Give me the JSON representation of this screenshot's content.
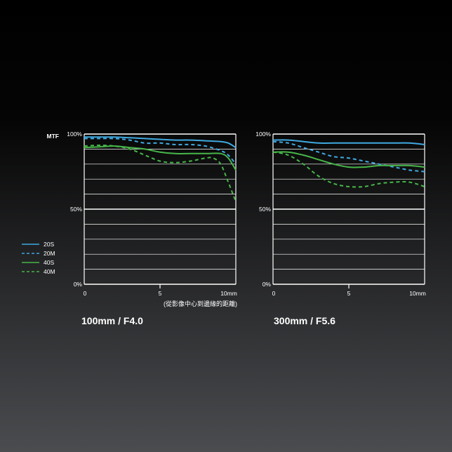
{
  "colors": {
    "sagittal": "#3fa9e0",
    "meridional": "#47b649",
    "grid": "#ffffff"
  },
  "labels": {
    "mtf": "MTF",
    "distance_note": "(從影像中心到邊緣的距離)"
  },
  "chart_data": [
    {
      "type": "line",
      "title": "100mm / F4.0",
      "ylabel": "MTF",
      "xlabel": "(從影像中心到邊緣的距離)",
      "xlim": [
        0,
        10
      ],
      "ylim": [
        0,
        100
      ],
      "xticks": [
        "0",
        "5",
        "10mm"
      ],
      "yticks": [
        "0%",
        "50%",
        "100%"
      ],
      "series": [
        {
          "name": "20S",
          "style": "solid",
          "color": "#3fa9e0",
          "x": [
            0,
            1,
            2,
            3,
            4,
            5,
            6,
            7,
            8,
            9,
            9.5,
            10
          ],
          "y": [
            98,
            98,
            98,
            97.5,
            97,
            96.5,
            96,
            96,
            95.5,
            95,
            94,
            91
          ]
        },
        {
          "name": "20M",
          "style": "dashed",
          "color": "#3fa9e0",
          "x": [
            0,
            1,
            2,
            3,
            4,
            5,
            6,
            7,
            8,
            9,
            9.5,
            10
          ],
          "y": [
            97,
            97,
            97,
            96,
            94,
            94,
            93,
            93,
            92,
            89,
            86,
            80
          ]
        },
        {
          "name": "40S",
          "style": "solid",
          "color": "#47b649",
          "x": [
            0,
            1,
            2,
            3,
            4,
            5,
            6,
            7,
            8,
            9,
            9.5,
            10
          ],
          "y": [
            91,
            91.5,
            92,
            91,
            90,
            88,
            87,
            87,
            87,
            87,
            84,
            76
          ]
        },
        {
          "name": "40M",
          "style": "dashed",
          "color": "#47b649",
          "x": [
            0,
            1,
            2,
            3,
            4,
            5,
            6,
            7,
            8,
            8.5,
            9,
            9.5,
            10
          ],
          "y": [
            92,
            92.5,
            92,
            90,
            86,
            82,
            81,
            82,
            84,
            84,
            80,
            68,
            55
          ]
        }
      ]
    },
    {
      "type": "line",
      "title": "300mm / F5.6",
      "ylabel": "",
      "xlabel": "",
      "xlim": [
        0,
        10
      ],
      "ylim": [
        0,
        100
      ],
      "xticks": [
        "0",
        "5",
        "10mm"
      ],
      "yticks": [
        "0%",
        "50%",
        "100%"
      ],
      "series": [
        {
          "name": "20S",
          "style": "solid",
          "color": "#3fa9e0",
          "x": [
            0,
            1,
            2,
            3,
            4,
            5,
            6,
            7,
            8,
            9,
            10
          ],
          "y": [
            96,
            96,
            95,
            94,
            94,
            94,
            94,
            94,
            94,
            94,
            93
          ]
        },
        {
          "name": "20M",
          "style": "dashed",
          "color": "#3fa9e0",
          "x": [
            0,
            1,
            2,
            3,
            4,
            5,
            6,
            7,
            8,
            9,
            10
          ],
          "y": [
            95,
            94,
            91,
            88,
            85,
            84,
            82,
            80,
            78,
            76,
            75
          ]
        },
        {
          "name": "40S",
          "style": "solid",
          "color": "#47b649",
          "x": [
            0,
            1,
            2,
            3,
            4,
            5,
            6,
            7,
            8,
            9,
            10
          ],
          "y": [
            88,
            88,
            86,
            83,
            80,
            78,
            78,
            79,
            79,
            79,
            78
          ]
        },
        {
          "name": "40M",
          "style": "dashed",
          "color": "#47b649",
          "x": [
            0,
            1,
            2,
            3,
            4,
            5,
            6,
            7,
            8,
            9,
            10
          ],
          "y": [
            88,
            86,
            80,
            72,
            67,
            65,
            65,
            67,
            68,
            68,
            65
          ]
        }
      ]
    }
  ]
}
